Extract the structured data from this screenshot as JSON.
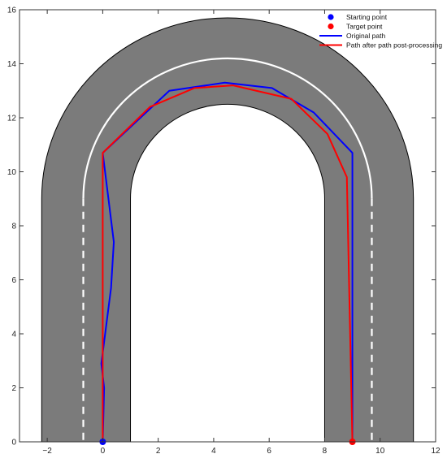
{
  "chart_data": {
    "type": "line",
    "xlim": [
      -3,
      12
    ],
    "ylim": [
      0,
      16
    ],
    "x_ticks": [
      -2,
      0,
      2,
      4,
      6,
      8,
      10,
      12
    ],
    "y_ticks": [
      0,
      2,
      4,
      6,
      8,
      10,
      12,
      14,
      16
    ],
    "x_tick_labels": [
      "−2",
      "0",
      "2",
      "4",
      "6",
      "8",
      "10",
      "12"
    ],
    "y_tick_labels": [
      "0",
      "2",
      "4",
      "6",
      "8",
      "10",
      "12",
      "14",
      "16"
    ],
    "grid": false,
    "legend_position": "top-right",
    "road": {
      "center_x": 4.5,
      "arc_center_y": 9.0,
      "outer_radius": 6.7,
      "inner_radius": 3.5,
      "lane_radius": 5.2,
      "lane_dashed_below_y": 9.0,
      "road_color": "#7b7b7b",
      "edge_color": "#000000",
      "lane_color": "#ffffff"
    },
    "series": [
      {
        "name": "Starting point",
        "kind": "marker",
        "color": "#0000ff",
        "x": [
          0
        ],
        "y": [
          0
        ]
      },
      {
        "name": "Target point",
        "kind": "marker",
        "color": "#ff0000",
        "x": [
          9
        ],
        "y": [
          0
        ]
      },
      {
        "name": "Original path",
        "kind": "line",
        "color": "#0000ff",
        "x": [
          0.0,
          0.05,
          -0.05,
          0.3,
          0.4,
          0.0,
          2.4,
          4.4,
          6.1,
          7.6,
          9.0,
          9.0
        ],
        "y": [
          0.0,
          2.0,
          2.9,
          5.7,
          7.4,
          10.7,
          13.0,
          13.3,
          13.1,
          12.2,
          10.7,
          0.0
        ]
      },
      {
        "name": "Path after path post-processing",
        "kind": "line",
        "color": "#ff0000",
        "x": [
          0.0,
          0.0,
          1.7,
          3.3,
          4.7,
          6.8,
          8.1,
          8.8,
          9.0
        ],
        "y": [
          0.0,
          10.7,
          12.4,
          13.1,
          13.2,
          12.7,
          11.4,
          9.8,
          0.0
        ]
      }
    ]
  }
}
